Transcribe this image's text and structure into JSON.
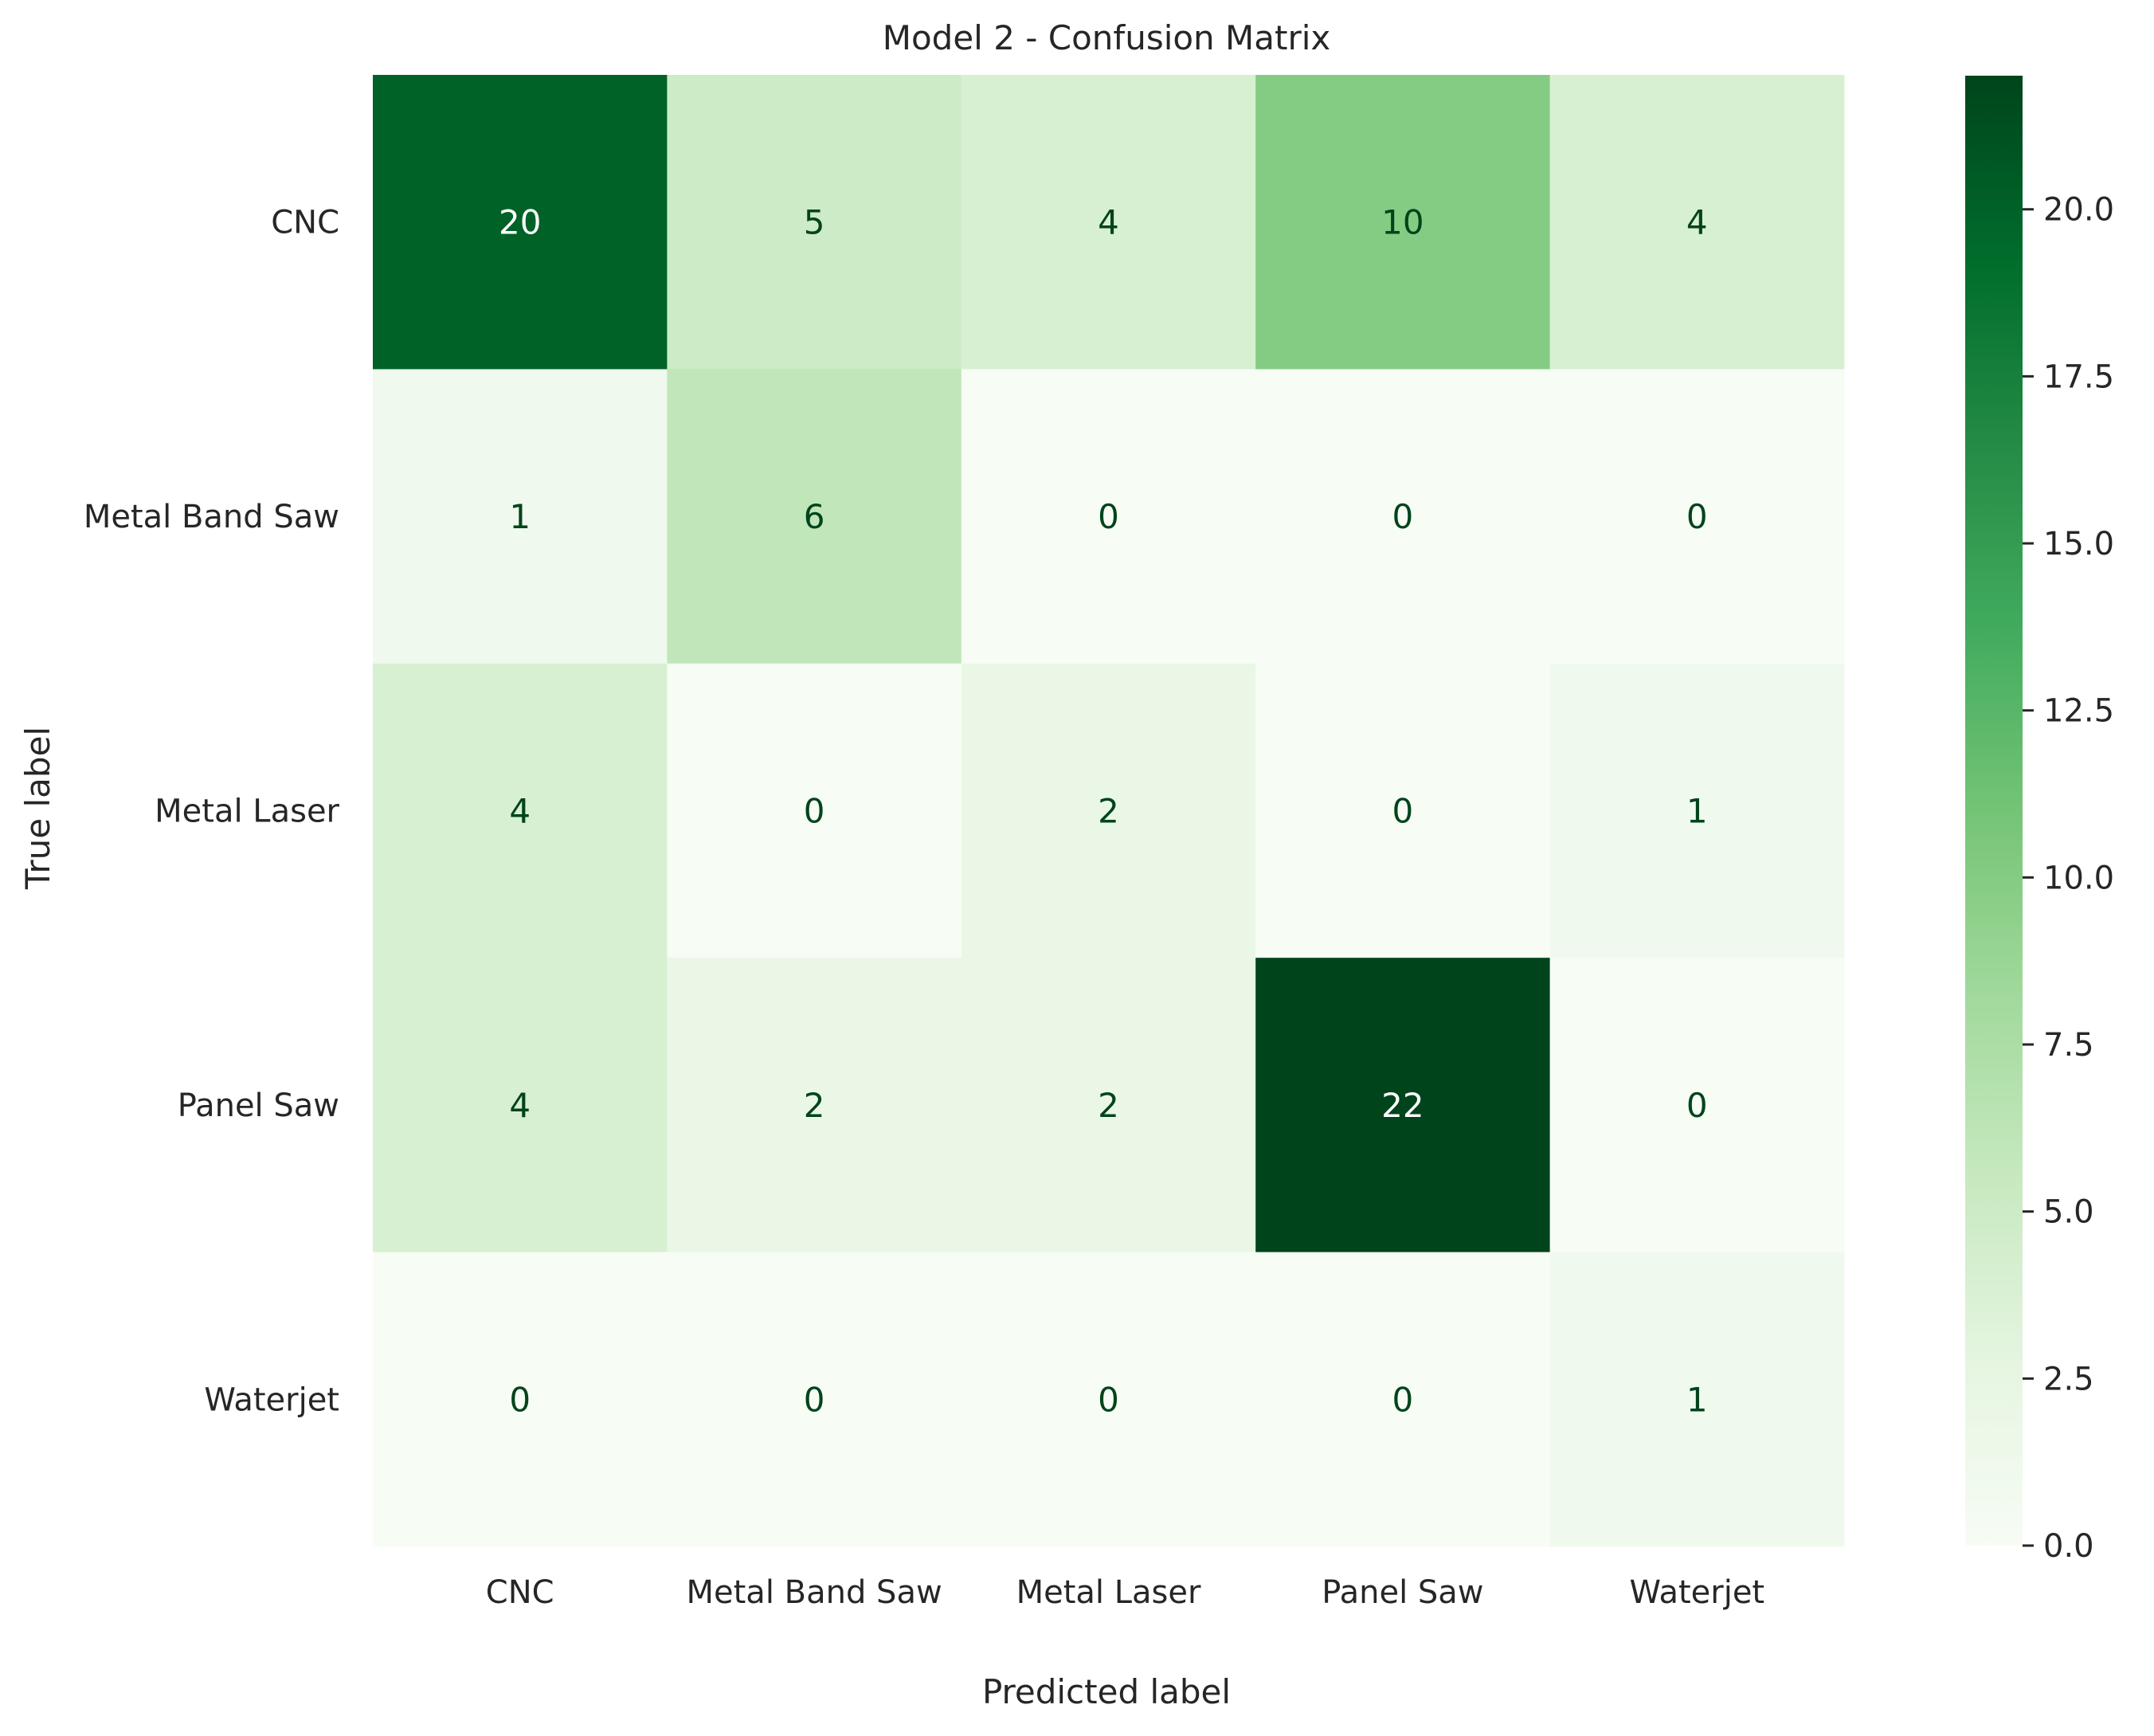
{
  "chart_data": {
    "type": "heatmap",
    "title": "Model 2 - Confusion Matrix",
    "xlabel": "Predicted label",
    "ylabel": "True label",
    "x_categories": [
      "CNC",
      "Metal Band Saw",
      "Metal Laser",
      "Panel Saw",
      "Waterjet"
    ],
    "y_categories": [
      "CNC",
      "Metal Band Saw",
      "Metal Laser",
      "Panel Saw",
      "Waterjet"
    ],
    "values": [
      [
        20,
        5,
        4,
        10,
        4
      ],
      [
        1,
        6,
        0,
        0,
        0
      ],
      [
        4,
        0,
        2,
        0,
        1
      ],
      [
        4,
        2,
        2,
        22,
        0
      ],
      [
        0,
        0,
        0,
        0,
        1
      ]
    ],
    "colormap": "Greens",
    "colorbar": {
      "range": [
        0,
        22
      ],
      "ticks": [
        0,
        2.5,
        5,
        7.5,
        10,
        12.5,
        15,
        17.5,
        20
      ],
      "tick_labels": [
        "0.0",
        "2.5",
        "5.0",
        "7.5",
        "10.0",
        "12.5",
        "15.0",
        "17.5",
        "20.0"
      ]
    },
    "colors": {
      "text_dark": "#00441b",
      "text_light": "#ffffff",
      "label": "#262626"
    }
  }
}
